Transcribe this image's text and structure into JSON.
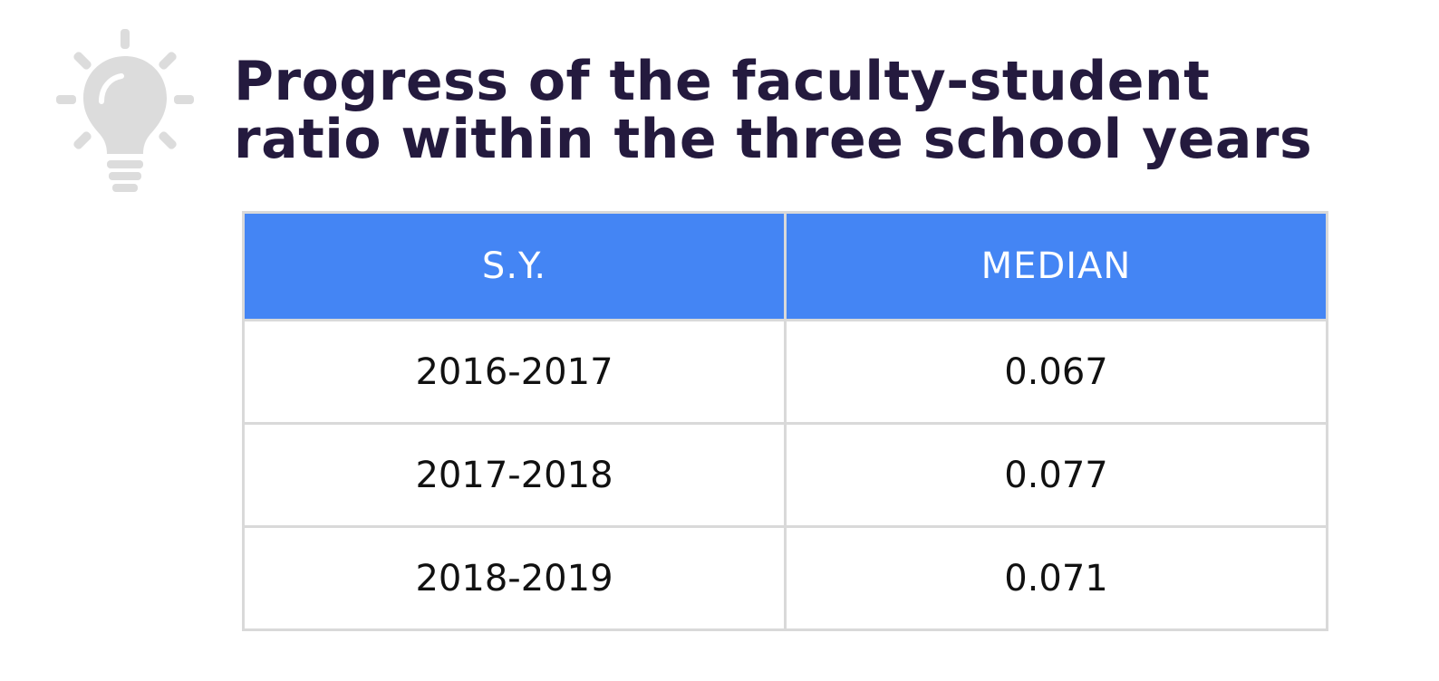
{
  "chart_data": {
    "type": "table",
    "title": "Progress of the faculty-student ratio within the three school years",
    "title_lines": [
      "Progress of the faculty-student",
      "ratio within the three school years"
    ],
    "columns": [
      "S.Y.",
      "MEDIAN"
    ],
    "rows": [
      [
        "2016-2017",
        "0.067"
      ],
      [
        "2017-2018",
        "0.077"
      ],
      [
        "2018-2019",
        "0.071"
      ]
    ],
    "header_color": "#4485f4",
    "title_color": "#241a3e",
    "icon": "lightbulb-icon"
  }
}
